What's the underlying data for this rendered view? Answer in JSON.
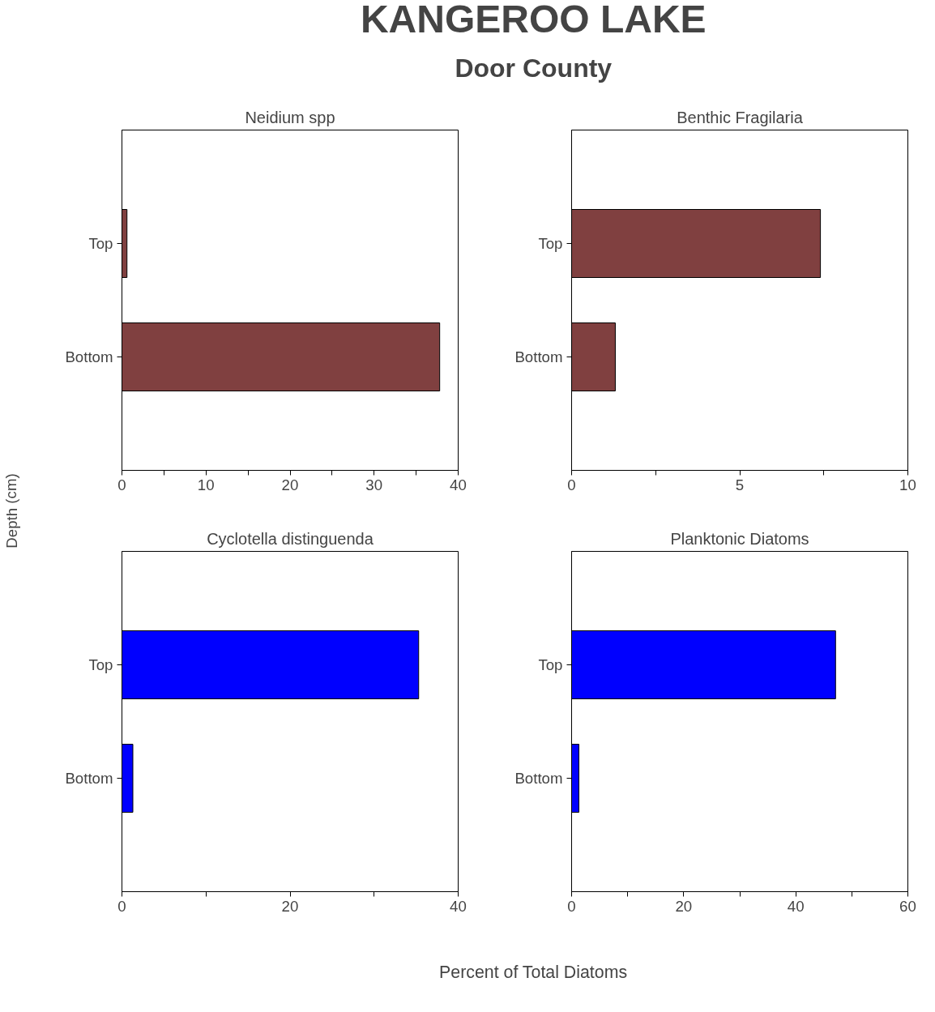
{
  "chart_data": [
    {
      "type": "other",
      "title": "KANGEROO LAKE",
      "subtitle": "Door County",
      "xlabel": "Percent of Total Diatoms",
      "ylabel": "Depth (cm)"
    },
    {
      "type": "bar",
      "orientation": "horizontal",
      "title": "Neidium spp",
      "categories": [
        "Top",
        "Bottom"
      ],
      "values": [
        0.6,
        37.8
      ],
      "color": "#804040",
      "xlim": [
        0,
        40
      ],
      "xticks": [
        0,
        {
          "value": 5,
          "label": null
        },
        10,
        {
          "value": 15,
          "label": null
        },
        20,
        {
          "value": 25,
          "label": null
        },
        30,
        {
          "value": 35,
          "label": null
        },
        40
      ]
    },
    {
      "type": "bar",
      "orientation": "horizontal",
      "title": "Benthic Fragilaria",
      "categories": [
        "Top",
        "Bottom"
      ],
      "values": [
        7.4,
        1.3
      ],
      "color": "#804040",
      "xlim": [
        0,
        10
      ],
      "xticks": [
        0,
        {
          "value": 2.5,
          "label": null
        },
        5,
        {
          "value": 7.5,
          "label": null
        },
        10
      ]
    },
    {
      "type": "bar",
      "orientation": "horizontal",
      "title": "Cyclotella distinguenda",
      "categories": [
        "Top",
        "Bottom"
      ],
      "values": [
        35.3,
        1.3
      ],
      "color": "#0000ff",
      "xlim": [
        0,
        40
      ],
      "xticks": [
        0,
        {
          "value": 10,
          "label": null
        },
        20,
        {
          "value": 30,
          "label": null
        },
        40
      ]
    },
    {
      "type": "bar",
      "orientation": "horizontal",
      "title": "Planktonic Diatoms",
      "categories": [
        "Top",
        "Bottom"
      ],
      "values": [
        47.1,
        1.3
      ],
      "color": "#0000ff",
      "xlim": [
        0,
        60
      ],
      "xticks": [
        0,
        {
          "value": 10,
          "label": null
        },
        20,
        {
          "value": 30,
          "label": null
        },
        40,
        {
          "value": 50,
          "label": null
        },
        60
      ]
    }
  ]
}
